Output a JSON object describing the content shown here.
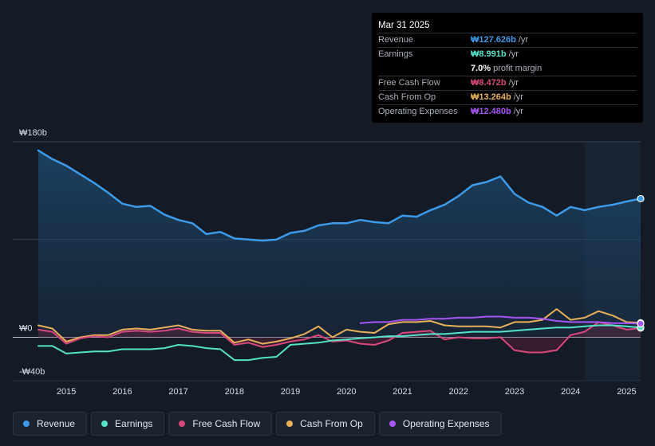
{
  "chart_data": {
    "type": "line",
    "title": "",
    "currency_prefix": "₩",
    "y_axis_labels": [
      "₩180b",
      "₩0",
      "-₩40b"
    ],
    "ylim": [
      -40,
      180
    ],
    "xlim": [
      2014.5,
      2025.25
    ],
    "x_tick_labels": [
      "2015",
      "2016",
      "2017",
      "2018",
      "2019",
      "2020",
      "2021",
      "2022",
      "2023",
      "2024",
      "2025"
    ],
    "x_tick_values": [
      2015,
      2016,
      2017,
      2018,
      2019,
      2020,
      2021,
      2022,
      2023,
      2024,
      2025
    ],
    "forecast_start": 2024.25,
    "series": [
      {
        "name": "Revenue",
        "color": "#3d9be9",
        "area": true,
        "points": [
          [
            2014.5,
            172
          ],
          [
            2014.75,
            164
          ],
          [
            2015.0,
            158
          ],
          [
            2015.25,
            150
          ],
          [
            2015.5,
            142
          ],
          [
            2015.75,
            133
          ],
          [
            2016.0,
            123
          ],
          [
            2016.25,
            120
          ],
          [
            2016.5,
            121
          ],
          [
            2016.75,
            113
          ],
          [
            2017.0,
            108
          ],
          [
            2017.25,
            105
          ],
          [
            2017.5,
            95
          ],
          [
            2017.75,
            97
          ],
          [
            2018.0,
            91
          ],
          [
            2018.25,
            90
          ],
          [
            2018.5,
            89
          ],
          [
            2018.75,
            90
          ],
          [
            2019.0,
            96
          ],
          [
            2019.25,
            98
          ],
          [
            2019.5,
            103
          ],
          [
            2019.75,
            105
          ],
          [
            2020.0,
            105
          ],
          [
            2020.25,
            108
          ],
          [
            2020.5,
            106
          ],
          [
            2020.75,
            105
          ],
          [
            2021.0,
            112
          ],
          [
            2021.25,
            111
          ],
          [
            2021.5,
            117
          ],
          [
            2021.75,
            122
          ],
          [
            2022.0,
            130
          ],
          [
            2022.25,
            140
          ],
          [
            2022.5,
            143
          ],
          [
            2022.75,
            148
          ],
          [
            2023.0,
            132
          ],
          [
            2023.25,
            124
          ],
          [
            2023.5,
            120
          ],
          [
            2023.75,
            112
          ],
          [
            2024.0,
            120
          ],
          [
            2024.25,
            117
          ],
          [
            2024.5,
            120
          ],
          [
            2024.75,
            122
          ],
          [
            2025.0,
            125
          ],
          [
            2025.25,
            127.626
          ]
        ]
      },
      {
        "name": "Earnings",
        "color": "#53e3c8",
        "area": false,
        "points": [
          [
            2014.5,
            -8
          ],
          [
            2014.75,
            -8
          ],
          [
            2015.0,
            -15
          ],
          [
            2015.25,
            -14
          ],
          [
            2015.5,
            -13
          ],
          [
            2015.75,
            -13
          ],
          [
            2016.0,
            -11
          ],
          [
            2016.25,
            -11
          ],
          [
            2016.5,
            -11
          ],
          [
            2016.75,
            -10
          ],
          [
            2017.0,
            -7
          ],
          [
            2017.25,
            -8
          ],
          [
            2017.5,
            -10
          ],
          [
            2017.75,
            -11
          ],
          [
            2018.0,
            -21
          ],
          [
            2018.25,
            -21
          ],
          [
            2018.5,
            -19
          ],
          [
            2018.75,
            -18
          ],
          [
            2019.0,
            -7
          ],
          [
            2019.25,
            -6
          ],
          [
            2019.5,
            -5
          ],
          [
            2019.75,
            -3
          ],
          [
            2020.0,
            -2
          ],
          [
            2020.25,
            -1
          ],
          [
            2020.5,
            0
          ],
          [
            2020.75,
            1
          ],
          [
            2021.0,
            1
          ],
          [
            2021.25,
            2
          ],
          [
            2021.5,
            3
          ],
          [
            2021.75,
            3
          ],
          [
            2022.0,
            4
          ],
          [
            2022.25,
            5
          ],
          [
            2022.5,
            5
          ],
          [
            2022.75,
            5
          ],
          [
            2023.0,
            6
          ],
          [
            2023.25,
            7
          ],
          [
            2023.5,
            8
          ],
          [
            2023.75,
            9
          ],
          [
            2024.0,
            9
          ],
          [
            2024.25,
            10
          ],
          [
            2024.5,
            11
          ],
          [
            2024.75,
            11
          ],
          [
            2025.0,
            10
          ],
          [
            2025.25,
            8.991
          ]
        ]
      },
      {
        "name": "Free Cash Flow",
        "color": "#d9487d",
        "area": true,
        "points": [
          [
            2014.5,
            7
          ],
          [
            2014.75,
            5
          ],
          [
            2015.0,
            -6
          ],
          [
            2015.25,
            -1
          ],
          [
            2015.5,
            1
          ],
          [
            2015.75,
            0
          ],
          [
            2016.0,
            5
          ],
          [
            2016.25,
            6
          ],
          [
            2016.5,
            5
          ],
          [
            2016.75,
            6
          ],
          [
            2017.0,
            8
          ],
          [
            2017.25,
            5
          ],
          [
            2017.5,
            4
          ],
          [
            2017.75,
            4
          ],
          [
            2018.0,
            -7
          ],
          [
            2018.25,
            -5
          ],
          [
            2018.5,
            -9
          ],
          [
            2018.75,
            -7
          ],
          [
            2019.0,
            -4
          ],
          [
            2019.25,
            -2
          ],
          [
            2019.5,
            2
          ],
          [
            2019.75,
            -4
          ],
          [
            2020.0,
            -3
          ],
          [
            2020.25,
            -6
          ],
          [
            2020.5,
            -7
          ],
          [
            2020.75,
            -3
          ],
          [
            2021.0,
            4
          ],
          [
            2021.25,
            5
          ],
          [
            2021.5,
            6
          ],
          [
            2021.75,
            -2
          ],
          [
            2022.0,
            0
          ],
          [
            2022.25,
            -1
          ],
          [
            2022.5,
            -1
          ],
          [
            2022.75,
            0
          ],
          [
            2023.0,
            -12
          ],
          [
            2023.25,
            -14
          ],
          [
            2023.5,
            -14
          ],
          [
            2023.75,
            -12
          ],
          [
            2024.0,
            2
          ],
          [
            2024.25,
            5
          ],
          [
            2024.5,
            14
          ],
          [
            2024.75,
            11
          ],
          [
            2025.0,
            7
          ],
          [
            2025.25,
            8.472
          ]
        ]
      },
      {
        "name": "Cash From Op",
        "color": "#e8b05a",
        "area": false,
        "points": [
          [
            2014.5,
            11
          ],
          [
            2014.75,
            8
          ],
          [
            2015.0,
            -4
          ],
          [
            2015.25,
            0
          ],
          [
            2015.5,
            2
          ],
          [
            2015.75,
            2
          ],
          [
            2016.0,
            7
          ],
          [
            2016.25,
            8
          ],
          [
            2016.5,
            7
          ],
          [
            2016.75,
            9
          ],
          [
            2017.0,
            11
          ],
          [
            2017.25,
            7
          ],
          [
            2017.5,
            6
          ],
          [
            2017.75,
            6
          ],
          [
            2018.0,
            -5
          ],
          [
            2018.25,
            -2
          ],
          [
            2018.5,
            -6
          ],
          [
            2018.75,
            -4
          ],
          [
            2019.0,
            -1
          ],
          [
            2019.25,
            3
          ],
          [
            2019.5,
            10
          ],
          [
            2019.75,
            0
          ],
          [
            2020.0,
            7
          ],
          [
            2020.25,
            5
          ],
          [
            2020.5,
            4
          ],
          [
            2020.75,
            12
          ],
          [
            2021.0,
            14
          ],
          [
            2021.25,
            14
          ],
          [
            2021.5,
            15
          ],
          [
            2021.75,
            11
          ],
          [
            2022.0,
            10
          ],
          [
            2022.25,
            10
          ],
          [
            2022.5,
            10
          ],
          [
            2022.75,
            9
          ],
          [
            2023.0,
            14
          ],
          [
            2023.25,
            14
          ],
          [
            2023.5,
            16
          ],
          [
            2023.75,
            26
          ],
          [
            2024.0,
            16
          ],
          [
            2024.25,
            18
          ],
          [
            2024.5,
            24
          ],
          [
            2024.75,
            20
          ],
          [
            2025.0,
            14
          ],
          [
            2025.25,
            13.264
          ]
        ]
      },
      {
        "name": "Operating Expenses",
        "color": "#a855f7",
        "area": false,
        "points": [
          [
            2020.25,
            13
          ],
          [
            2020.5,
            14
          ],
          [
            2020.75,
            14
          ],
          [
            2021.0,
            16
          ],
          [
            2021.25,
            16
          ],
          [
            2021.5,
            17
          ],
          [
            2021.75,
            17
          ],
          [
            2022.0,
            18
          ],
          [
            2022.25,
            18
          ],
          [
            2022.5,
            19
          ],
          [
            2022.75,
            19
          ],
          [
            2023.0,
            18
          ],
          [
            2023.25,
            18
          ],
          [
            2023.5,
            17
          ],
          [
            2023.75,
            15
          ],
          [
            2024.0,
            14
          ],
          [
            2024.25,
            14
          ],
          [
            2024.5,
            14
          ],
          [
            2024.75,
            13
          ],
          [
            2025.0,
            13
          ],
          [
            2025.25,
            12.48
          ]
        ]
      }
    ]
  },
  "tooltip": {
    "date": "Mar 31 2025",
    "rows": [
      {
        "label": "Revenue",
        "value": "₩127.626b",
        "unit": "/yr",
        "color": "#3d9be9"
      },
      {
        "label": "Earnings",
        "value": "₩8.991b",
        "unit": "/yr",
        "color": "#53e3c8"
      },
      {
        "label": "",
        "value": "7.0%",
        "unit": "profit margin",
        "color": "#ffffff"
      },
      {
        "label": "Free Cash Flow",
        "value": "₩8.472b",
        "unit": "/yr",
        "color": "#d9487d"
      },
      {
        "label": "Cash From Op",
        "value": "₩13.264b",
        "unit": "/yr",
        "color": "#e8b05a"
      },
      {
        "label": "Operating Expenses",
        "value": "₩12.480b",
        "unit": "/yr",
        "color": "#a855f7"
      }
    ]
  },
  "legend": [
    {
      "label": "Revenue",
      "color": "#3d9be9"
    },
    {
      "label": "Earnings",
      "color": "#53e3c8"
    },
    {
      "label": "Free Cash Flow",
      "color": "#d9487d"
    },
    {
      "label": "Cash From Op",
      "color": "#e8b05a"
    },
    {
      "label": "Operating Expenses",
      "color": "#a855f7"
    }
  ]
}
